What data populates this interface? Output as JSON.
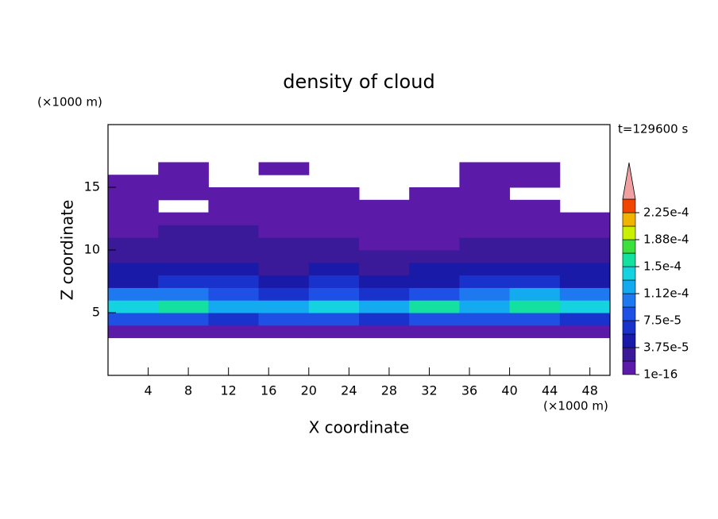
{
  "chart_data": {
    "type": "contour",
    "title": "density of cloud",
    "xlabel": "X coordinate",
    "ylabel": "Z coordinate",
    "x_unit": "(×1000 m)",
    "y_unit": "(×1000 m)",
    "annotation": "t=129600 s",
    "xlim": [
      0,
      50
    ],
    "ylim": [
      0,
      20
    ],
    "xticks": [
      4,
      8,
      12,
      16,
      20,
      24,
      28,
      32,
      36,
      40,
      44,
      48
    ],
    "yticks": [
      5,
      10,
      15
    ],
    "x": [
      2.5,
      7.5,
      12.5,
      17.5,
      22.5,
      27.5,
      32.5,
      37.5,
      42.5,
      47.5
    ],
    "y": [
      3.5,
      4.5,
      5.5,
      6.5,
      7.5,
      8.5,
      9.5,
      10.5,
      11.5,
      12.5,
      13.5,
      14.5,
      15.5,
      16.5
    ],
    "z": [
      [
        1e-05,
        1e-05,
        1e-05,
        1e-05,
        1e-05,
        1e-05,
        1e-05,
        1e-05,
        1e-05,
        1e-05
      ],
      [
        8e-05,
        9e-05,
        7e-05,
        8e-05,
        9e-05,
        7e-05,
        8e-05,
        9e-05,
        8e-05,
        6e-05
      ],
      [
        0.00014,
        0.00016,
        0.00013,
        0.00012,
        0.00014,
        0.00012,
        0.00015,
        0.00013,
        0.00016,
        0.00014
      ],
      [
        0.0001,
        0.00011,
        8e-05,
        7e-05,
        9e-05,
        7e-05,
        9e-05,
        0.0001,
        0.00012,
        0.00011
      ],
      [
        5e-05,
        6e-05,
        6e-05,
        5e-05,
        7e-05,
        5e-05,
        5e-05,
        6e-05,
        6e-05,
        5e-05
      ],
      [
        4e-05,
        4e-05,
        5e-05,
        3e-05,
        4e-05,
        3e-05,
        4e-05,
        5e-05,
        4e-05,
        4e-05
      ],
      [
        3e-05,
        3e-05,
        3e-05,
        3e-05,
        2e-05,
        3e-05,
        3e-05,
        3e-05,
        3e-05,
        2e-05
      ],
      [
        2e-05,
        3e-05,
        2e-05,
        2e-05,
        2e-05,
        1e-05,
        1e-05,
        2e-05,
        2e-05,
        2e-05
      ],
      [
        1e-05,
        2e-05,
        2e-05,
        1e-05,
        1e-05,
        1e-05,
        1e-05,
        1e-05,
        1e-05,
        1e-05
      ],
      [
        1e-05,
        1e-05,
        1e-05,
        1e-05,
        1e-05,
        1e-05,
        1e-05,
        1e-05,
        1e-05,
        1e-05
      ],
      [
        1e-05,
        null,
        1e-05,
        1e-05,
        1e-05,
        1e-05,
        1e-05,
        1e-05,
        1e-05,
        null
      ],
      [
        1e-05,
        1e-05,
        1e-05,
        1e-05,
        1e-05,
        null,
        1e-05,
        1e-05,
        null,
        null
      ],
      [
        1e-05,
        1e-05,
        null,
        null,
        null,
        null,
        null,
        1e-05,
        1e-05,
        null
      ],
      [
        null,
        1e-05,
        null,
        1e-05,
        null,
        null,
        null,
        1e-05,
        1e-05,
        null
      ]
    ],
    "colorbar": {
      "levels": [
        1e-16,
        1.875e-05,
        3.75e-05,
        5.625e-05,
        7.5e-05,
        9.375e-05,
        0.0001125,
        0.00013125,
        0.00015,
        0.00016875,
        0.0001875,
        0.00020625,
        0.000225,
        0.00024375
      ],
      "colors": [
        "#5b1aa8",
        "#3a1a98",
        "#1a1aa8",
        "#1a32cc",
        "#1e50e6",
        "#1e78f0",
        "#14aaf0",
        "#14d2e0",
        "#14e0a0",
        "#3ce03c",
        "#c8f000",
        "#f0b400",
        "#f04600",
        "#f0a0a0"
      ],
      "ticks": [
        {
          "value": 1e-16,
          "label": "1e-16"
        },
        {
          "value": 3.75e-05,
          "label": "3.75e-5"
        },
        {
          "value": 7.5e-05,
          "label": "7.5e-5"
        },
        {
          "value": 0.0001125,
          "label": "1.12e-4"
        },
        {
          "value": 0.00015,
          "label": "1.5e-4"
        },
        {
          "value": 0.0001875,
          "label": "1.88e-4"
        },
        {
          "value": 0.000225,
          "label": "2.25e-4"
        }
      ]
    }
  }
}
